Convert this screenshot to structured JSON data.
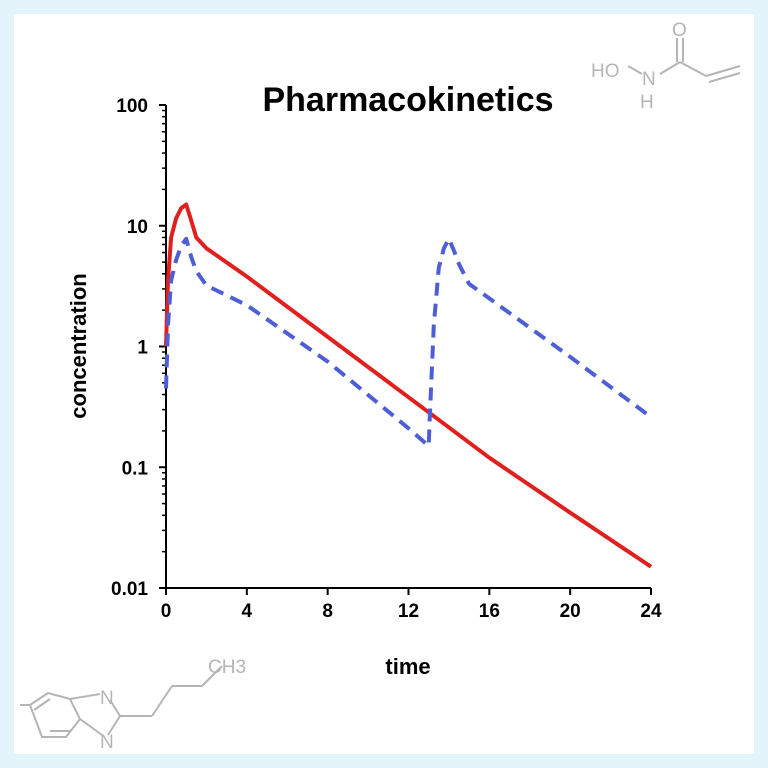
{
  "chart_data": {
    "type": "line",
    "title": "Pharmacokinetics",
    "xlabel": "time",
    "ylabel": "concentration",
    "xlim": [
      0,
      24
    ],
    "ylim": [
      0.01,
      100
    ],
    "yscale": "log",
    "grid": false,
    "x_ticks": [
      "0",
      "4",
      "8",
      "12",
      "16",
      "20",
      "24"
    ],
    "y_ticks": [
      "0.01",
      "0.1",
      "1",
      "10",
      "100"
    ],
    "series": [
      {
        "color": "#e0201f",
        "style": "solid",
        "x": [
          0,
          0.1,
          0.25,
          0.5,
          0.75,
          1.0,
          1.25,
          1.5,
          2,
          4,
          8,
          12,
          16,
          20,
          24
        ],
        "y": [
          1.0,
          3.5,
          8.0,
          11.5,
          14.0,
          15.0,
          11.0,
          8.0,
          6.5,
          3.8,
          1.2,
          0.38,
          0.12,
          0.042,
          0.015
        ]
      },
      {
        "color": "#4e5fd6",
        "style": "dashed",
        "x": [
          0,
          0.1,
          0.25,
          0.5,
          0.75,
          1.0,
          1.25,
          1.5,
          2,
          4,
          8,
          12,
          13.0,
          13.05,
          13.25,
          13.5,
          13.75,
          14.0,
          14.25,
          14.5,
          15,
          16,
          20,
          24
        ],
        "y": [
          0.45,
          1.5,
          3.5,
          5.2,
          6.8,
          7.8,
          5.5,
          4.2,
          3.2,
          2.2,
          0.75,
          0.21,
          0.15,
          0.25,
          1.5,
          4.5,
          6.5,
          7.8,
          6.2,
          4.8,
          3.3,
          2.5,
          0.82,
          0.26
        ]
      }
    ]
  },
  "decorations": {
    "hydroxamic_acid": {
      "ho": "HO",
      "n": "N",
      "h": "H",
      "o": "O"
    },
    "butylbenzimidazole": {
      "ch3": "CH3",
      "n_top": "N",
      "n_bottom": "N"
    }
  }
}
